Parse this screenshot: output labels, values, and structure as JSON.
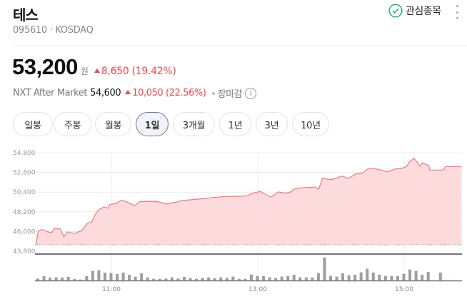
{
  "header": {
    "title": "테스",
    "subtitle": "095610 · KOSDAQ",
    "favorite_label": "관심종목",
    "favorite_icon": "check-circle-icon",
    "more_icon": "kebab-menu-icon"
  },
  "quote": {
    "price": "53,200",
    "unit": "원",
    "change": "8,650 (19.42%)",
    "nxt_label": "NXT After Market",
    "nxt_price": "54,600",
    "nxt_change": "10,050 (22.56%)",
    "status": "장마감",
    "info_icon": "i"
  },
  "periods": [
    {
      "label": "일봉",
      "selected": false
    },
    {
      "label": "주봉",
      "selected": false
    },
    {
      "label": "월봉",
      "selected": false
    },
    {
      "label": "1일",
      "selected": true
    },
    {
      "label": "3개월",
      "selected": false
    },
    {
      "label": "1년",
      "selected": false
    },
    {
      "label": "3년",
      "selected": false
    },
    {
      "label": "10년",
      "selected": false
    }
  ],
  "colors": {
    "up": "#f0464c",
    "line": "#f4767a",
    "fill": "#fddadc",
    "volume": "#9e9e9e",
    "favorite": "#1db66a"
  },
  "chart_data": {
    "type": "area",
    "y_ticks": [
      "54,800",
      "52,600",
      "50,400",
      "48,200",
      "46,000",
      "43,800"
    ],
    "ylim": [
      43800,
      54800
    ],
    "x_ticks": [
      "11:00",
      "13:00",
      "15:00"
    ],
    "grid": true,
    "price": [
      [
        "09:58",
        44540
      ],
      [
        "09:59",
        45150
      ],
      [
        "10:00",
        46080
      ],
      [
        "10:03",
        46220
      ],
      [
        "10:08",
        45950
      ],
      [
        "10:11",
        45870
      ],
      [
        "10:13",
        46300
      ],
      [
        "10:18",
        46300
      ],
      [
        "10:21",
        45420
      ],
      [
        "10:24",
        45950
      ],
      [
        "10:30",
        45770
      ],
      [
        "10:36",
        46140
      ],
      [
        "10:40",
        46880
      ],
      [
        "10:44",
        47100
      ],
      [
        "10:47",
        47950
      ],
      [
        "10:50",
        48480
      ],
      [
        "10:54",
        48740
      ],
      [
        "10:57",
        48610
      ],
      [
        "10:59",
        49010
      ],
      [
        "11:04",
        49140
      ],
      [
        "11:08",
        49490
      ],
      [
        "11:12",
        49330
      ],
      [
        "11:19",
        48880
      ],
      [
        "11:23",
        49330
      ],
      [
        "11:31",
        49380
      ],
      [
        "11:38",
        49330
      ],
      [
        "11:45",
        49060
      ],
      [
        "11:53",
        49270
      ],
      [
        "11:58",
        49460
      ],
      [
        "12:05",
        49540
      ],
      [
        "12:15",
        49670
      ],
      [
        "12:24",
        49800
      ],
      [
        "12:34",
        49910
      ],
      [
        "12:44",
        49940
      ],
      [
        "12:51",
        49960
      ],
      [
        "12:56",
        50280
      ],
      [
        "13:02",
        50470
      ],
      [
        "13:08",
        50020
      ],
      [
        "13:11",
        49860
      ],
      [
        "13:17",
        50420
      ],
      [
        "13:23",
        50280
      ],
      [
        "13:27",
        50420
      ],
      [
        "13:30",
        50740
      ],
      [
        "13:35",
        50870
      ],
      [
        "13:40",
        50920
      ],
      [
        "13:47",
        50950
      ],
      [
        "13:50",
        50740
      ],
      [
        "13:53",
        51930
      ],
      [
        "14:00",
        51800
      ],
      [
        "14:04",
        51930
      ],
      [
        "14:09",
        52200
      ],
      [
        "14:14",
        51930
      ],
      [
        "14:21",
        52460
      ],
      [
        "14:25",
        52460
      ],
      [
        "14:31",
        53070
      ],
      [
        "14:39",
        52940
      ],
      [
        "14:46",
        52670
      ],
      [
        "14:53",
        52990
      ],
      [
        "14:58",
        53050
      ],
      [
        "15:02",
        53260
      ],
      [
        "15:04",
        53710
      ],
      [
        "15:08",
        54190
      ],
      [
        "15:10",
        53840
      ],
      [
        "15:13",
        53310
      ],
      [
        "15:15",
        53660
      ],
      [
        "15:20",
        53390
      ],
      [
        "15:21",
        52860
      ],
      [
        "15:32",
        52860
      ],
      [
        "15:34",
        53260
      ],
      [
        "15:47",
        53260
      ]
    ],
    "volume_start": "10:00",
    "volume_interval_min": 5,
    "volume": [
      8,
      18,
      12,
      13,
      12,
      15,
      6,
      4,
      18,
      40,
      43,
      33,
      31,
      27,
      33,
      24,
      16,
      30,
      13,
      7,
      7,
      8,
      13,
      8,
      15,
      10,
      7,
      10,
      13,
      9,
      13,
      11,
      16,
      7,
      7,
      25,
      19,
      18,
      13,
      10,
      16,
      18,
      24,
      13,
      13,
      13,
      31,
      97,
      19,
      16,
      30,
      22,
      24,
      34,
      49,
      33,
      24,
      19,
      19,
      18,
      28,
      46,
      40,
      24,
      36,
      0,
      33
    ]
  }
}
